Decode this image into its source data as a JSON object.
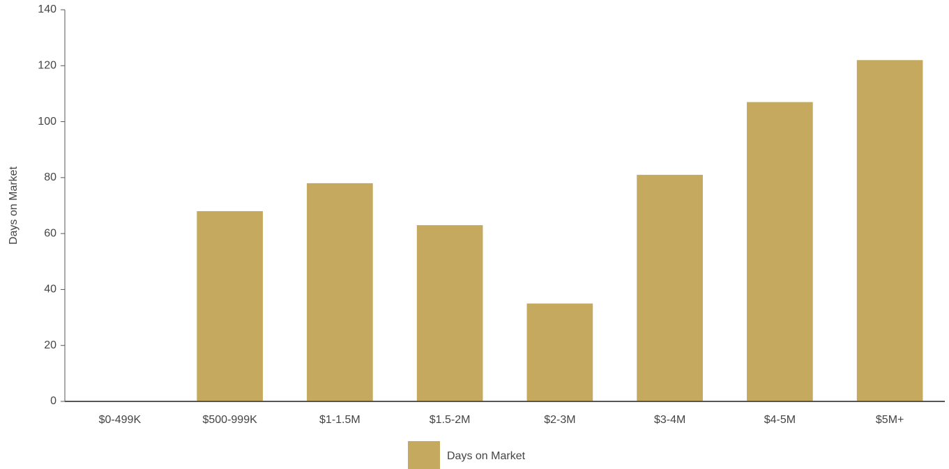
{
  "chart_data": {
    "type": "bar",
    "ylabel": "Days on Market",
    "categories": [
      "$0-499K",
      "$500-999K",
      "$1-1.5M",
      "$1.5-2M",
      "$2-3M",
      "$3-4M",
      "$4-5M",
      "$5M+"
    ],
    "series": [
      {
        "name": "Days on Market",
        "color": "#c5a95e",
        "values": [
          0,
          68,
          78,
          63,
          35,
          81,
          107,
          122
        ]
      }
    ],
    "ylim": [
      0,
      140
    ],
    "yticks": [
      0,
      20,
      40,
      60,
      80,
      100,
      120,
      140
    ],
    "legend": "bottom"
  }
}
